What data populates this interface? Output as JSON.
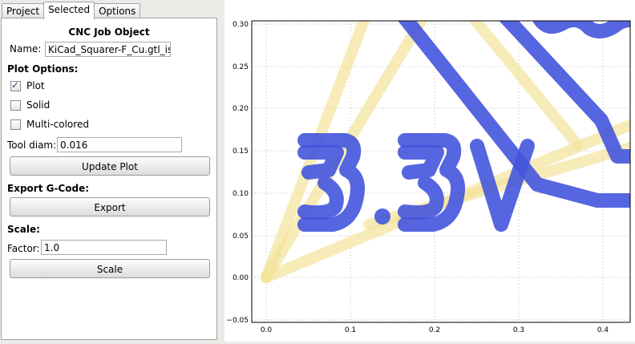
{
  "tabs": [
    {
      "label": "Project"
    },
    {
      "label": "Selected"
    },
    {
      "label": "Options"
    }
  ],
  "panel": {
    "title": "CNC Job Object",
    "name_label": "Name:",
    "name_value": "KiCad_Squarer-F_Cu.gtl_iso_",
    "plot_options_label": "Plot Options:",
    "plot_label": "Plot",
    "plot_checked": true,
    "solid_label": "Solid",
    "solid_checked": false,
    "multicolor_label": "Multi-colored",
    "multicolor_checked": false,
    "tool_diam_label": "Tool diam:",
    "tool_diam_value": "0.016",
    "update_plot_label": "Update Plot",
    "export_gcode_label": "Export G-Code:",
    "export_label": "Export",
    "scale_label": "Scale:",
    "factor_label": "Factor:",
    "factor_value": "1.0",
    "scale_button_label": "Scale"
  },
  "plot": {
    "x_ticks": [
      "0.0",
      "0.1",
      "0.2",
      "0.3",
      "0.4"
    ],
    "y_ticks": [
      "0.30",
      "0.25",
      "0.20",
      "0.15",
      "0.10",
      "0.05",
      "0.00",
      "−0.05"
    ],
    "tool_path_color": "#4455dd",
    "travel_color": "#f5e9a0",
    "text_shown": "3.3V"
  }
}
